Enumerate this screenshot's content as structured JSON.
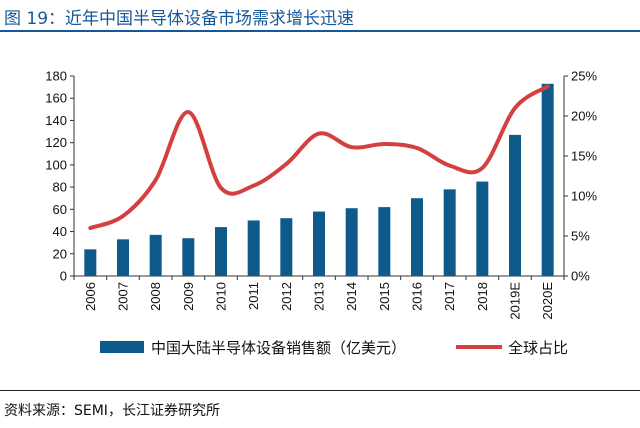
{
  "title": "图 19：近年中国半导体设备市场需求增长迅速",
  "source": "资料来源：SEMI，长江证券研究所",
  "colors": {
    "bar": "#0E5A8A",
    "line": "#D43F3F",
    "title": "#16579A"
  },
  "chart_data": {
    "type": "bar",
    "categories": [
      "2006",
      "2007",
      "2008",
      "2009",
      "2010",
      "2011",
      "2012",
      "2013",
      "2014",
      "2015",
      "2016",
      "2017",
      "2018",
      "2019E",
      "2020E"
    ],
    "series": [
      {
        "name": "中国大陆半导体设备销售额（亿美元）",
        "type": "bar",
        "axis": "left",
        "values": [
          24,
          33,
          37,
          34,
          44,
          50,
          52,
          58,
          61,
          62,
          70,
          78,
          85,
          127,
          173
        ]
      },
      {
        "name": "全球占比",
        "type": "line",
        "axis": "right",
        "values": [
          6.0,
          7.5,
          12.0,
          20.5,
          11.0,
          11.3,
          14.0,
          17.8,
          16.1,
          16.5,
          16.0,
          13.8,
          13.5,
          21.0,
          23.7
        ]
      }
    ],
    "y_left": {
      "min": 0,
      "max": 180,
      "step": 20,
      "ticks": [
        "0",
        "20",
        "40",
        "60",
        "80",
        "100",
        "120",
        "140",
        "160",
        "180"
      ]
    },
    "y_right": {
      "min": 0,
      "max": 25,
      "step": 5,
      "ticks": [
        "0%",
        "5%",
        "10%",
        "15%",
        "20%",
        "25%"
      ]
    },
    "legend": {
      "placement": "bottom"
    }
  }
}
